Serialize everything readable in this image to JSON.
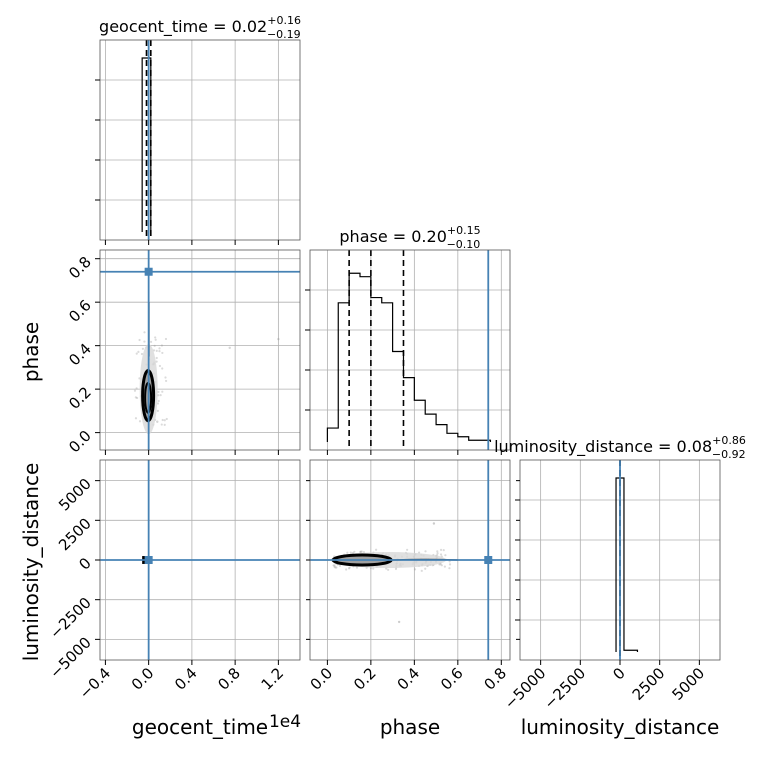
{
  "chart_data": {
    "type": "corner",
    "parameters": [
      {
        "name": "geocent_time",
        "display_label": "geocent_time",
        "axis_multiplier": "1e4",
        "ticks": [
          "−0.4",
          "0.0",
          "0.4",
          "0.8",
          "1.2"
        ],
        "tick_values": [
          -0.4,
          0.0,
          0.4,
          0.8,
          1.2
        ],
        "range": [
          -0.45,
          1.4
        ]
      },
      {
        "name": "phase",
        "display_label": "phase",
        "ticks": [
          "0.0",
          "0.2",
          "0.4",
          "0.6",
          "0.8"
        ],
        "tick_values": [
          0.0,
          0.2,
          0.4,
          0.6,
          0.8
        ],
        "range": [
          -0.08,
          0.84
        ]
      },
      {
        "name": "luminosity_distance",
        "display_label": "luminosity_distance",
        "ticks": [
          "−5000",
          "−2500",
          "0",
          "2500",
          "5000"
        ],
        "tick_values": [
          -5000,
          -2500,
          0,
          2500,
          5000
        ],
        "range": [
          -6300,
          6300
        ]
      }
    ],
    "titles": [
      {
        "name": "geocent_time",
        "median": "0.02",
        "plus": "+0.16",
        "minus": "−0.19"
      },
      {
        "name": "phase",
        "median": "0.20",
        "plus": "+0.15",
        "minus": "−0.10"
      },
      {
        "name": "luminosity_distance",
        "median": "0.08",
        "plus": "+0.86",
        "minus": "−0.92"
      }
    ],
    "quantiles": {
      "geocent_time": [
        -0.02,
        0.0,
        0.02
      ],
      "phase": [
        0.1,
        0.2,
        0.35
      ],
      "luminosity_distance": [
        -0.92,
        0.08,
        0.94
      ]
    },
    "truths": {
      "geocent_time": 0.0,
      "phase": 0.74,
      "luminosity_distance": 0
    },
    "histograms": {
      "geocent_time": {
        "edges": [
          -0.06,
          -0.02,
          0.02
        ],
        "counts": [
          1.0,
          1.0
        ]
      },
      "phase": {
        "edges": [
          0.0,
          0.05,
          0.1,
          0.15,
          0.2,
          0.25,
          0.3,
          0.35,
          0.4,
          0.45,
          0.5,
          0.55,
          0.6,
          0.65,
          0.7,
          0.75
        ],
        "counts": [
          0.08,
          0.8,
          0.97,
          0.95,
          0.83,
          0.8,
          0.52,
          0.37,
          0.24,
          0.16,
          0.1,
          0.05,
          0.03,
          0.01,
          0.01
        ]
      },
      "luminosity_distance": {
        "edges": [
          -250,
          0,
          250,
          1100
        ],
        "counts": [
          1.0,
          1.0,
          0.01
        ]
      }
    },
    "grid": true,
    "truth_color": "#4682b4",
    "contour_color": "#000000",
    "sample_color": "#999999"
  }
}
